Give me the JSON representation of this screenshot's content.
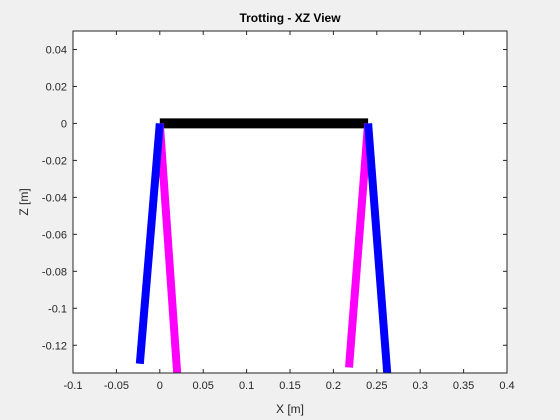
{
  "chart_data": {
    "type": "line",
    "title": "Trotting - XZ View",
    "xlabel": "X [m]",
    "ylabel": "Z [m]",
    "xlim": [
      -0.1,
      0.4
    ],
    "ylim": [
      -0.135,
      0.05
    ],
    "xticks": [
      -0.1,
      -0.05,
      0,
      0.05,
      0.1,
      0.15,
      0.2,
      0.25,
      0.3,
      0.35,
      0.4
    ],
    "xtick_labels": [
      "-0.1",
      "-0.05",
      "0",
      "0.05",
      "0.1",
      "0.15",
      "0.2",
      "0.25",
      "0.3",
      "0.35",
      "0.4"
    ],
    "yticks": [
      0.04,
      0.02,
      0,
      -0.02,
      -0.04,
      -0.06,
      -0.08,
      -0.1,
      -0.12
    ],
    "ytick_labels": [
      "0.04",
      "0.02",
      "0",
      "-0.02",
      "-0.04",
      "-0.06",
      "-0.08",
      "-0.1",
      "-0.12"
    ],
    "grid": false,
    "series": [
      {
        "color": "#000000",
        "x": [
          0,
          0.24
        ],
        "z": [
          0,
          0
        ]
      },
      {
        "color": "#ff00ff",
        "x": [
          0,
          0.02
        ],
        "z": [
          0,
          -0.135
        ]
      },
      {
        "color": "#ff00ff",
        "x": [
          0.24,
          0.218
        ],
        "z": [
          0,
          -0.132
        ]
      },
      {
        "color": "#0000ff",
        "x": [
          0,
          -0.023
        ],
        "z": [
          0,
          -0.13
        ]
      },
      {
        "color": "#0000ff",
        "x": [
          0.24,
          0.262
        ],
        "z": [
          0,
          -0.135
        ]
      }
    ]
  }
}
